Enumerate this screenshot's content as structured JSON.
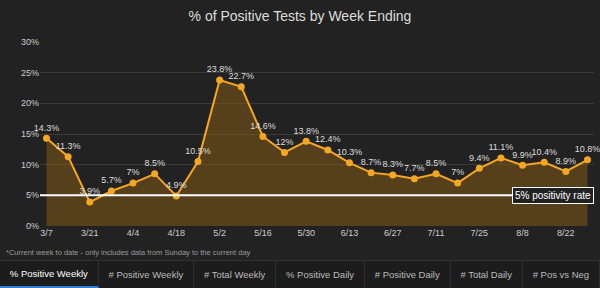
{
  "chart_data": {
    "type": "line",
    "title": "% of Positive Tests by Week Ending",
    "categories": [
      "3/7",
      null,
      "3/21",
      null,
      "4/4",
      null,
      "4/18",
      null,
      "5/2",
      null,
      "5/16",
      null,
      "5/30",
      null,
      "6/13",
      null,
      "6/27",
      null,
      "7/11",
      null,
      "7/25",
      null,
      "8/8",
      null,
      "8/22",
      null
    ],
    "values": [
      14.3,
      11.3,
      3.9,
      5.7,
      7,
      8.5,
      4.9,
      10.5,
      23.8,
      22.7,
      14.6,
      12,
      13.8,
      12.4,
      10.3,
      8.7,
      8.3,
      7.7,
      8.5,
      7,
      9.4,
      11.1,
      9.9,
      10.4,
      8.9,
      10.8
    ],
    "value_labels": [
      "14.3%",
      "11.3%",
      "3.9%",
      "5.7%",
      "7%",
      "8.5%",
      "4.9%",
      "10.5%",
      "23.8%",
      "22.7%",
      "14.6%",
      "12%",
      "13.8%",
      "12.4%",
      "10.3%",
      "8.7%",
      "8.3%",
      "7.7%",
      "8.5%",
      "7%",
      "9.4%",
      "11.1%",
      "9.9%",
      "10.4%",
      "8.9%",
      "10.8%"
    ],
    "data_labels": true,
    "color": "#f5a623",
    "ylim": [
      0,
      30
    ],
    "yticks": [
      {
        "value": 0,
        "label": "0%"
      },
      {
        "value": 5,
        "label": "5%"
      },
      {
        "value": 10,
        "label": "10%"
      },
      {
        "value": 15,
        "label": "15%"
      },
      {
        "value": 20,
        "label": "20%"
      },
      {
        "value": 25,
        "label": "25%"
      },
      {
        "value": 30,
        "label": "30%"
      }
    ],
    "grid": true,
    "annotations": [
      {
        "text": "5% positivity rate",
        "y": 5
      }
    ],
    "footnote": "*Current week to date - only includes data from Sunday to the current day"
  },
  "tabs": [
    "% Positive Weekly",
    "# Positive Weekly",
    "# Total Weekly",
    "% Positive Daily",
    "# Positive Daily",
    "# Total Daily",
    "# Pos vs Neg"
  ]
}
